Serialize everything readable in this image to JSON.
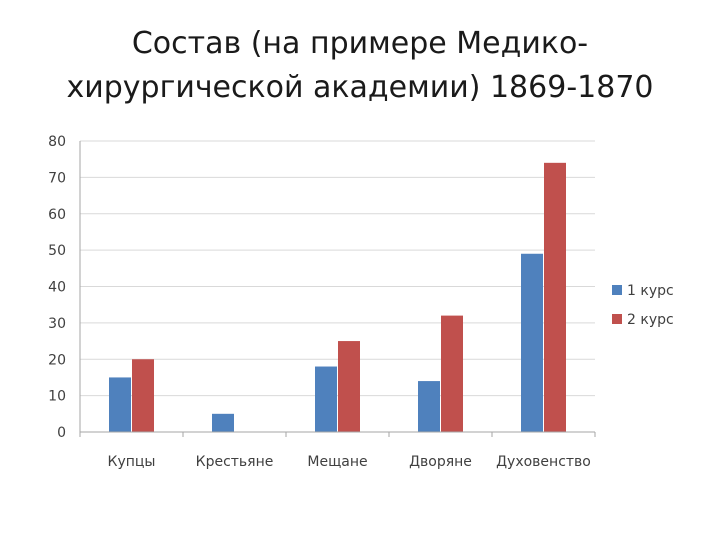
{
  "slide": {
    "title_line1": "Состав (на примере Медико-",
    "title_line2": "хирургической академии) 1869-1870"
  },
  "chart_data": {
    "type": "bar",
    "title": "",
    "xlabel": "",
    "ylabel": "",
    "categories": [
      "Купцы",
      "Крестьяне",
      "Мещане",
      "Дворяне",
      "Духовенство"
    ],
    "series": [
      {
        "name": "1 курс",
        "color": "#4f81bd",
        "values": [
          15,
          5,
          18,
          14,
          49
        ]
      },
      {
        "name": "2 курс",
        "color": "#c0504d",
        "values": [
          20,
          0,
          25,
          32,
          74
        ]
      }
    ],
    "ylim": [
      0,
      80
    ],
    "yticks": [
      0,
      10,
      20,
      30,
      40,
      50,
      60,
      70,
      80
    ],
    "grid": true,
    "legend": "right"
  }
}
